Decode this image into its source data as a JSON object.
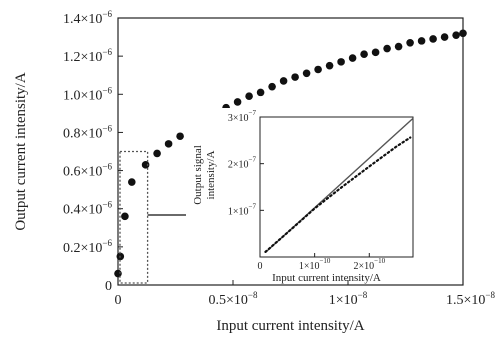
{
  "chart_data": [
    {
      "type": "scatter",
      "role": "main",
      "title": "",
      "xlabel": "Input current intensity/A",
      "ylabel": "Output current intensity/A",
      "xlim": [
        0,
        1.5e-08
      ],
      "ylim": [
        0,
        1.4e-06
      ],
      "xticks": [
        {
          "value": 0,
          "mantissa": "0",
          "exp": ""
        },
        {
          "value": 5e-09,
          "mantissa": "0.5×10",
          "exp": "−8"
        },
        {
          "value": 1e-08,
          "mantissa": "1×10",
          "exp": "−8"
        },
        {
          "value": 1.5e-08,
          "mantissa": "1.5×10",
          "exp": "−8"
        }
      ],
      "yticks": [
        {
          "value": 0,
          "mantissa": "0",
          "exp": ""
        },
        {
          "value": 2e-07,
          "mantissa": "0.2×10",
          "exp": "−6"
        },
        {
          "value": 4e-07,
          "mantissa": "0.4×10",
          "exp": "−6"
        },
        {
          "value": 6e-07,
          "mantissa": "0.6×10",
          "exp": "−6"
        },
        {
          "value": 8e-07,
          "mantissa": "0.8×10",
          "exp": "−6"
        },
        {
          "value": 1e-06,
          "mantissa": "1.0×10",
          "exp": "−6"
        },
        {
          "value": 1.2e-06,
          "mantissa": "1.2×10",
          "exp": "−6"
        },
        {
          "value": 1.4e-06,
          "mantissa": "1.4×10",
          "exp": "−6"
        }
      ],
      "x": [
        0,
        1e-10,
        3e-10,
        6e-10,
        1.2e-09,
        1.7e-09,
        2.2e-09,
        2.7e-09,
        3.2e-09,
        3.7e-09,
        4.2e-09,
        4.7e-09,
        5.2e-09,
        5.7e-09,
        6.2e-09,
        6.7e-09,
        7.2e-09,
        7.7e-09,
        8.2e-09,
        8.7e-09,
        9.2e-09,
        9.7e-09,
        1.02e-08,
        1.07e-08,
        1.12e-08,
        1.17e-08,
        1.22e-08,
        1.27e-08,
        1.32e-08,
        1.37e-08,
        1.42e-08,
        1.47e-08,
        1.5e-08
      ],
      "y": [
        6e-08,
        1.5e-07,
        3.6e-07,
        5.4e-07,
        6.3e-07,
        6.9e-07,
        7.4e-07,
        7.8e-07,
        8.2e-07,
        8.6e-07,
        8.9e-07,
        9.3e-07,
        9.6e-07,
        9.9e-07,
        1.01e-06,
        1.04e-06,
        1.07e-06,
        1.09e-06,
        1.11e-06,
        1.13e-06,
        1.15e-06,
        1.17e-06,
        1.19e-06,
        1.21e-06,
        1.22e-06,
        1.24e-06,
        1.25e-06,
        1.27e-06,
        1.28e-06,
        1.29e-06,
        1.3e-06,
        1.31e-06,
        1.32e-06
      ],
      "selection_box": {
        "x": [
          0,
          1.2e-09
        ],
        "y": [
          0,
          7e-07
        ]
      },
      "grid": false
    },
    {
      "type": "line",
      "role": "inset",
      "title": "",
      "xlabel": "Input current intensity/A",
      "ylabel_lines": [
        "Output signal",
        "intensity/A"
      ],
      "xlim": [
        0,
        2.8e-10
      ],
      "ylim": [
        0,
        3e-07
      ],
      "xticks": [
        {
          "value": 0,
          "mantissa": "0",
          "exp": ""
        },
        {
          "value": 1e-10,
          "mantissa": "1×10",
          "exp": "−10"
        },
        {
          "value": 2e-10,
          "mantissa": "2×10",
          "exp": "−10"
        }
      ],
      "yticks": [
        {
          "value": 0,
          "mantissa": "0",
          "exp": ""
        },
        {
          "value": 1e-07,
          "mantissa": "1×10",
          "exp": "−7"
        },
        {
          "value": 2e-07,
          "mantissa": "2×10",
          "exp": "−7"
        },
        {
          "value": 3e-07,
          "mantissa": "3×10",
          "exp": "−7"
        }
      ],
      "series": [
        {
          "style": "solid",
          "x": [
            1e-11,
            2.8e-10
          ],
          "y": [
            1e-08,
            2.97e-07
          ]
        },
        {
          "style": "dotted",
          "x": [
            1e-11,
            5e-11,
            1e-10,
            1.5e-10,
            2e-10,
            2.5e-10,
            2.75e-10
          ],
          "y": [
            1.1e-08,
            5.2e-08,
            1.04e-07,
            1.5e-07,
            1.94e-07,
            2.37e-07,
            2.56e-07
          ]
        }
      ],
      "grid": false
    }
  ],
  "colors": {
    "axis": "#222222",
    "marker": "#111111",
    "solid_line": "#555555",
    "box": "#555555"
  }
}
